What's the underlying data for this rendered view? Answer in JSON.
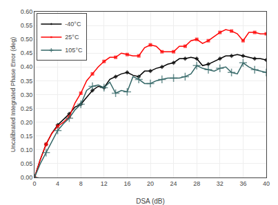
{
  "chart_data": {
    "type": "line",
    "xlabel": "DSA (dB)",
    "ylabel": "Uncalibrated Integrated Phase Error (deg)",
    "x": [
      0,
      1,
      2,
      3,
      4,
      5,
      6,
      7,
      8,
      9,
      10,
      11,
      12,
      13,
      14,
      15,
      16,
      17,
      18,
      19,
      20,
      21,
      22,
      23,
      24,
      25,
      26,
      27,
      28,
      29,
      30,
      31,
      32,
      33,
      34,
      35,
      36,
      37,
      38,
      39,
      40
    ],
    "series": [
      {
        "name": "-40°C",
        "color": "#000000",
        "marker": "diamond",
        "values": [
          0,
          0.065,
          0.12,
          0.16,
          0.19,
          0.21,
          0.23,
          0.255,
          0.265,
          0.29,
          0.315,
          0.33,
          0.325,
          0.355,
          0.365,
          0.375,
          0.38,
          0.37,
          0.365,
          0.385,
          0.385,
          0.395,
          0.4,
          0.41,
          0.415,
          0.43,
          0.43,
          0.435,
          0.43,
          0.405,
          0.41,
          0.42,
          0.43,
          0.44,
          0.44,
          0.445,
          0.44,
          0.435,
          0.43,
          0.43,
          0.425
        ]
      },
      {
        "name": "25°C",
        "color": "#ff0000",
        "marker": "square",
        "values": [
          0,
          0.065,
          0.12,
          0.16,
          0.185,
          0.2,
          0.22,
          0.27,
          0.305,
          0.35,
          0.375,
          0.4,
          0.42,
          0.435,
          0.435,
          0.45,
          0.445,
          0.44,
          0.44,
          0.47,
          0.48,
          0.475,
          0.455,
          0.455,
          0.455,
          0.475,
          0.475,
          0.495,
          0.5,
          0.485,
          0.495,
          0.51,
          0.525,
          0.535,
          0.53,
          0.52,
          0.495,
          0.525,
          0.525,
          0.52,
          0.52
        ]
      },
      {
        "name": "105°C",
        "color": "#336666",
        "marker": "plus",
        "values": [
          0,
          0.05,
          0.09,
          0.13,
          0.17,
          0.195,
          0.215,
          0.245,
          0.265,
          0.315,
          0.33,
          0.335,
          0.325,
          0.345,
          0.305,
          0.315,
          0.31,
          0.365,
          0.355,
          0.34,
          0.34,
          0.35,
          0.355,
          0.36,
          0.36,
          0.36,
          0.365,
          0.375,
          0.405,
          0.395,
          0.39,
          0.385,
          0.395,
          0.4,
          0.38,
          0.375,
          0.415,
          0.4,
          0.39,
          0.385,
          0.38
        ]
      }
    ],
    "xlim": [
      0,
      40
    ],
    "ylim": [
      0,
      0.6
    ],
    "xticks": [
      0,
      4,
      8,
      12,
      16,
      20,
      24,
      28,
      32,
      36,
      40
    ],
    "yticks": [
      {
        "value": 0,
        "label": "0.00"
      },
      0.05,
      {
        "value": 0.1,
        "label": "0.10"
      },
      0.15,
      {
        "value": 0.2,
        "label": "0.20"
      },
      0.25,
      {
        "value": 0.3,
        "label": "0.30"
      },
      0.35,
      {
        "value": 0.4,
        "label": "0.40"
      },
      0.45,
      {
        "value": 0.5,
        "label": "0.50"
      },
      0.55,
      {
        "value": 0.6,
        "label": "0.60"
      }
    ],
    "grid": true,
    "legend": "upper left"
  }
}
